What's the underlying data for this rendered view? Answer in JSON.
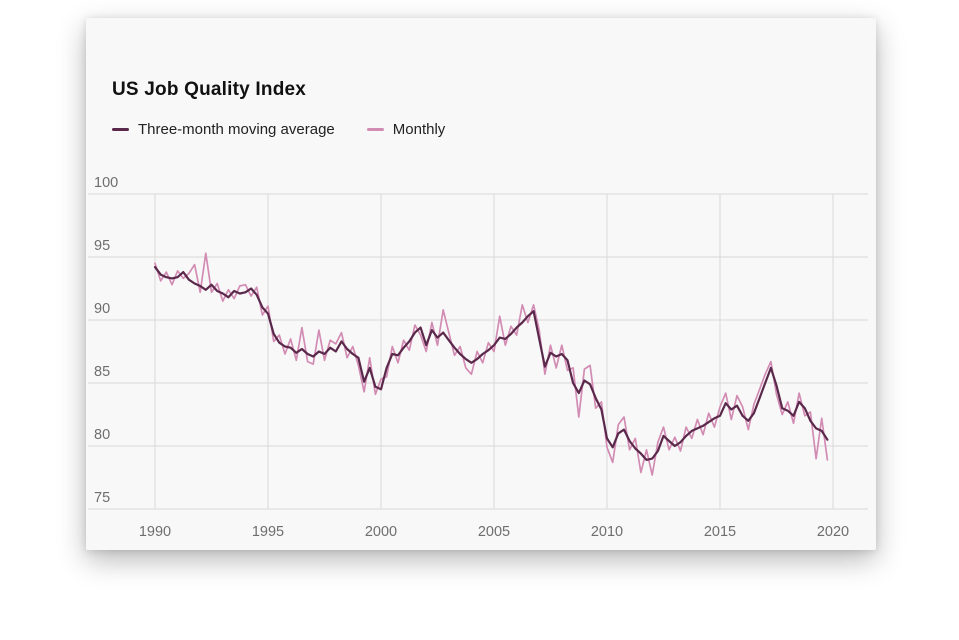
{
  "title": "US Job Quality Index",
  "legend": [
    {
      "label": "Three-month moving average",
      "color": "#5a284b"
    },
    {
      "label": "Monthly",
      "color": "#d28cb4"
    }
  ],
  "style": {
    "card_background": "#f8f8f8",
    "grid_color": "#d9d9d9",
    "tick_color": "#6e6e6e",
    "title_color": "#111111"
  },
  "chart_data": {
    "type": "line",
    "title": "US Job Quality Index",
    "xlabel": "",
    "ylabel": "",
    "x_ticks": [
      1990,
      1995,
      2000,
      2005,
      2010,
      2015,
      2020
    ],
    "y_ticks": [
      100,
      95,
      90,
      85,
      80,
      75
    ],
    "ylim": [
      75,
      100
    ],
    "xlim": [
      1987,
      2021.5
    ],
    "grid": true,
    "legend_position": "top-left",
    "x_start": 1990.0,
    "x_step": 0.25,
    "series": [
      {
        "name": "Three-month moving average",
        "color": "#5a284b",
        "width": 2.2,
        "values": [
          94.2,
          93.6,
          93.4,
          93.3,
          93.4,
          93.8,
          93.2,
          92.9,
          92.7,
          92.4,
          92.8,
          92.3,
          92.1,
          91.8,
          92.3,
          92.1,
          92.2,
          92.5,
          92.0,
          91.0,
          90.5,
          88.9,
          88.2,
          87.9,
          87.8,
          87.4,
          87.7,
          87.3,
          87.1,
          87.5,
          87.3,
          87.8,
          87.5,
          88.3,
          87.7,
          87.3,
          87.0,
          85.1,
          86.2,
          84.7,
          84.5,
          86.2,
          87.3,
          87.2,
          87.8,
          88.3,
          89.0,
          89.4,
          88.0,
          89.2,
          88.6,
          89.0,
          88.4,
          87.8,
          87.3,
          86.9,
          86.6,
          86.9,
          87.3,
          87.6,
          88.0,
          88.6,
          88.5,
          88.9,
          89.4,
          89.8,
          90.3,
          90.7,
          88.5,
          86.3,
          87.4,
          87.1,
          87.3,
          86.8,
          85.0,
          84.2,
          85.2,
          84.9,
          83.8,
          82.9,
          80.6,
          79.9,
          81.0,
          81.3,
          80.4,
          79.8,
          79.4,
          78.9,
          79.0,
          79.6,
          80.8,
          80.4,
          80.0,
          80.3,
          80.8,
          81.2,
          81.4,
          81.6,
          81.9,
          82.2,
          82.4,
          83.4,
          82.9,
          83.2,
          82.4,
          82.0,
          82.6,
          83.8,
          85.0,
          86.2,
          84.8,
          83.0,
          82.8,
          82.4,
          83.5,
          83.0,
          82.0,
          81.4,
          81.2,
          80.5
        ]
      },
      {
        "name": "Monthly",
        "color": "#d28cb4",
        "width": 1.7,
        "values": [
          94.5,
          93.1,
          93.8,
          92.8,
          93.9,
          93.3,
          93.7,
          94.4,
          92.2,
          95.3,
          92.2,
          92.9,
          91.5,
          92.4,
          91.7,
          92.7,
          92.8,
          91.9,
          92.6,
          90.4,
          91.1,
          88.3,
          88.8,
          87.3,
          88.5,
          86.8,
          89.4,
          86.7,
          86.5,
          89.2,
          86.8,
          88.4,
          88.1,
          89.0,
          87.0,
          87.9,
          86.4,
          84.3,
          87.0,
          84.1,
          85.3,
          85.5,
          87.9,
          86.6,
          88.4,
          87.6,
          89.6,
          88.8,
          87.5,
          89.8,
          88.0,
          90.8,
          89.0,
          87.2,
          87.9,
          86.2,
          85.7,
          87.5,
          86.6,
          88.2,
          87.5,
          90.3,
          88.0,
          89.5,
          88.8,
          91.2,
          89.8,
          91.2,
          89.2,
          85.7,
          88.0,
          86.2,
          88.0,
          86.0,
          86.2,
          82.3,
          86.1,
          86.4,
          83.0,
          83.5,
          79.9,
          78.7,
          81.7,
          82.3,
          79.7,
          80.6,
          77.9,
          79.7,
          77.7,
          80.3,
          81.5,
          79.7,
          80.7,
          79.6,
          81.5,
          80.6,
          82.1,
          80.9,
          82.6,
          81.5,
          83.1,
          84.2,
          82.1,
          84.0,
          83.1,
          81.3,
          83.3,
          84.5,
          85.7,
          86.7,
          84.1,
          82.5,
          83.5,
          81.8,
          84.2,
          82.4,
          82.7,
          79.0,
          82.2,
          78.9
        ]
      }
    ]
  }
}
